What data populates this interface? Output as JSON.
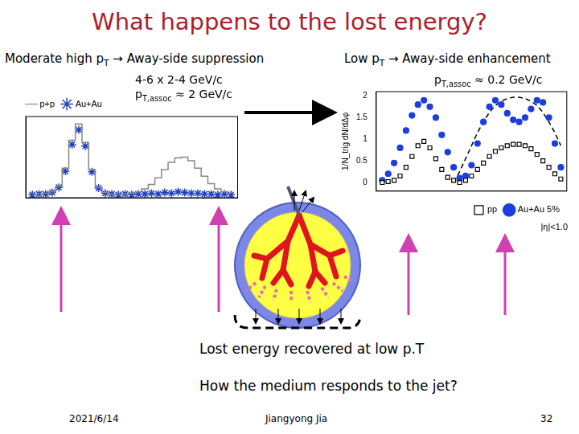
{
  "title": "What happens to the lost energy?",
  "diagram": {
    "note": "Lost energy recovered at low p.T",
    "question": "How the medium responds to the jet?"
  },
  "footer": {
    "date": "2021/6/14",
    "author": "Jiangyong Jia",
    "page": "32"
  },
  "chart_data": [
    {
      "type": "line",
      "title": [
        {
          "text": "Moderate high p"
        },
        {
          "sub": "T"
        },
        {
          "text": " → Away-side suppression"
        }
      ],
      "annotations": [
        [
          {
            "text": "4-6 x 2-4 GeV/c"
          }
        ],
        [
          {
            "text": "p"
          },
          {
            "sub": "T,assoc"
          },
          {
            "text": " ≈ 2 GeV/c"
          }
        ]
      ],
      "x": [
        -1.4,
        -1.2,
        -1.0,
        -0.8,
        -0.6,
        -0.4,
        -0.2,
        0,
        0.2,
        0.4,
        0.6,
        0.8,
        1.0,
        1.2,
        1.4,
        1.6,
        1.8,
        2.0,
        2.2,
        2.4,
        2.6,
        2.8,
        3.0,
        3.2,
        3.4,
        3.6,
        3.8,
        4.0,
        4.2,
        4.4,
        4.6
      ],
      "series": [
        {
          "name": "p+p",
          "color": "#888888",
          "marker": "none",
          "line_style": "steps",
          "values": [
            0.05,
            0.05,
            0.06,
            0.08,
            0.15,
            0.4,
            0.78,
            1.0,
            0.75,
            0.38,
            0.14,
            0.07,
            0.05,
            0.05,
            0.05,
            0.06,
            0.08,
            0.12,
            0.18,
            0.27,
            0.38,
            0.48,
            0.54,
            0.55,
            0.5,
            0.4,
            0.29,
            0.19,
            0.12,
            0.08,
            0.06
          ]
        },
        {
          "name": "Au+Au",
          "color": "#2040c0",
          "marker": "star",
          "line_style": "none",
          "values": [
            0.04,
            0.05,
            0.05,
            0.07,
            0.14,
            0.36,
            0.72,
            0.92,
            0.7,
            0.35,
            0.13,
            0.06,
            0.05,
            0.04,
            0.05,
            0.04,
            0.05,
            0.05,
            0.06,
            0.05,
            0.07,
            0.06,
            0.08,
            0.07,
            0.06,
            0.06,
            0.05,
            0.05,
            0.04,
            0.05,
            0.04
          ]
        }
      ],
      "xlim": [
        -1.6,
        4.8
      ],
      "ylim": [
        0,
        1.1
      ],
      "grid": false,
      "legend": "upper left",
      "tick_labels": false
    },
    {
      "type": "scatter",
      "title": [
        {
          "text": "Low p"
        },
        {
          "sub": "T"
        },
        {
          "text": " → Away-side enhancement"
        }
      ],
      "annotations": [
        [
          {
            "text": "p"
          },
          {
            "sub": "T,assoc"
          },
          {
            "text": " ≈ 0.2 GeV/c"
          }
        ]
      ],
      "y_label": "1/N_trig dN/dΔφ",
      "subtitle": "|η|<1.0",
      "x": [
        -1.4,
        -1.2,
        -1.0,
        -0.8,
        -0.6,
        -0.4,
        -0.2,
        0,
        0.2,
        0.4,
        0.6,
        0.8,
        1.0,
        1.2,
        1.4,
        1.6,
        1.8,
        2.0,
        2.2,
        2.4,
        2.6,
        2.8,
        3.0,
        3.2,
        3.4,
        3.6,
        3.8,
        4.0,
        4.2,
        4.4,
        4.6
      ],
      "series": [
        {
          "name": "pp",
          "color": "#000000",
          "marker": "open-square",
          "line_style": "none",
          "values": [
            0.0,
            0.02,
            0.05,
            0.15,
            0.35,
            0.6,
            0.85,
            0.95,
            0.8,
            0.55,
            0.3,
            0.12,
            0.05,
            0.0,
            0.05,
            0.15,
            0.3,
            0.45,
            0.6,
            0.72,
            0.8,
            0.85,
            0.88,
            0.88,
            0.85,
            0.78,
            0.65,
            0.5,
            0.35,
            0.2,
            0.08
          ]
        },
        {
          "name": "Au+Au 5%",
          "color": "#1a3ee0",
          "marker": "circle",
          "line_style": "none",
          "values": [
            0.05,
            0.2,
            0.45,
            0.8,
            1.2,
            1.55,
            1.8,
            1.9,
            1.75,
            1.5,
            1.1,
            0.7,
            0.35,
            0.1,
            0.15,
            0.4,
            0.9,
            1.4,
            1.75,
            1.9,
            1.8,
            1.6,
            1.45,
            1.4,
            1.5,
            1.7,
            1.9,
            1.85,
            1.5,
            0.9,
            0.35
          ]
        },
        {
          "color": "#000000",
          "marker": "none",
          "line_style": "dashed",
          "values": [
            null,
            null,
            null,
            null,
            null,
            null,
            null,
            null,
            null,
            null,
            null,
            null,
            0.0,
            0.25,
            0.55,
            0.85,
            1.15,
            1.4,
            1.62,
            1.78,
            1.88,
            1.94,
            1.97,
            1.97,
            1.94,
            1.88,
            1.78,
            1.62,
            1.4,
            1.15,
            0.85
          ]
        }
      ],
      "xlim": [
        -1.6,
        4.8
      ],
      "ylim": [
        -0.2,
        2.1
      ],
      "yticks": [
        0,
        0.5,
        1,
        1.5,
        2
      ],
      "grid": false,
      "legend": "lower right",
      "tick_labels": "y"
    }
  ]
}
